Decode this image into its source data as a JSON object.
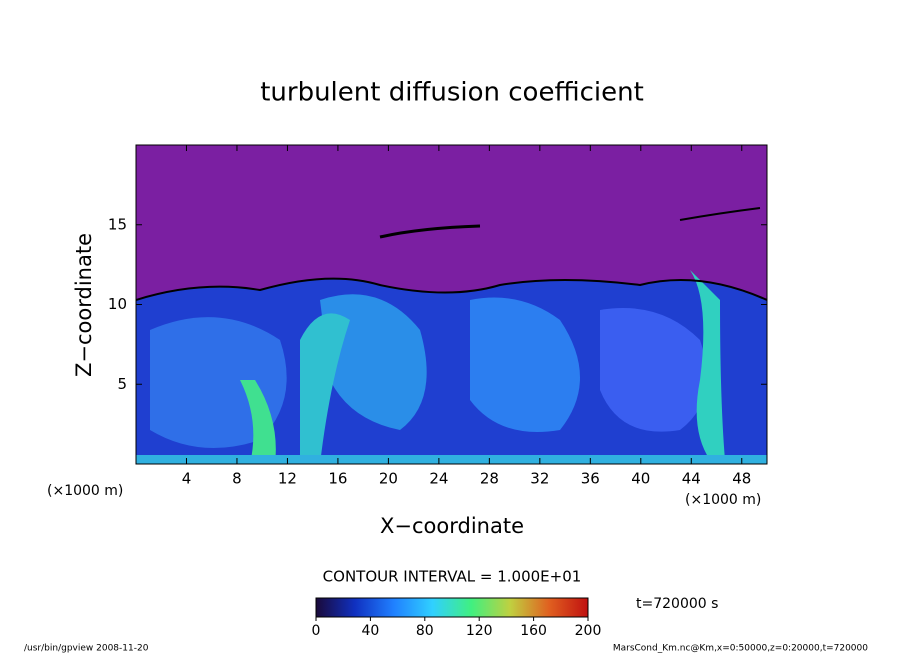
{
  "chart_data": {
    "type": "contour",
    "title": "turbulent diffusion coefficient",
    "x_label": "X−coordinate",
    "y_label": "Z−coordinate",
    "x_unit_label": "(×1000 m)",
    "y_unit_label": "(×1000 m)",
    "xlim": [
      0,
      50
    ],
    "ylim": [
      0,
      20
    ],
    "xticks": [
      4,
      8,
      12,
      16,
      20,
      24,
      28,
      32,
      36,
      40,
      44,
      48
    ],
    "yticks": [
      5,
      10,
      15
    ],
    "contour_interval_label": "CONTOUR INTERVAL = 1.000E+01",
    "time_label": "t=720000 s",
    "colorbar": {
      "lim": [
        0,
        200
      ],
      "ticks": [
        0,
        40,
        80,
        120,
        160,
        200
      ],
      "colors": [
        "#1a0a3a",
        "#1030c0",
        "#2080ff",
        "#30d0ff",
        "#40f080",
        "#c0d040",
        "#e06020",
        "#c01010"
      ]
    }
  },
  "footer": {
    "left": "/usr/bin/gpview  2008-11-20",
    "right": "MarsCond_Km.nc@Km,x=0:50000,z=0:20000,t=720000"
  }
}
